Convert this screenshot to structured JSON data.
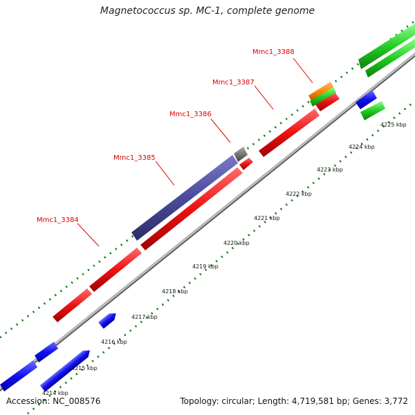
{
  "title": "Magnetococcus sp. MC-1, complete genome",
  "footer": {
    "accession": "Accession: NC_008576",
    "summary": "Topology: circular; Length: 4,719,581 bp; Genes: 3,772"
  },
  "scale_labels": [
    "4214 kbp",
    "4215 kbp",
    "4216 kbp",
    "4217 kbp",
    "4218 kbp",
    "4219 kbp",
    "4220 kbp",
    "4221 kbp",
    "4222 kbp",
    "4223 kbp",
    "4224 kbp",
    "4225 kbp"
  ],
  "gene_labels": [
    "Mmc1_3384",
    "Mmc1_3385",
    "Mmc1_3386",
    "Mmc1_3387",
    "Mmc1_3388"
  ],
  "colors": {
    "cds_forward": "#ee1111",
    "cds_reverse": "#1111ee",
    "rna": "#22cc22",
    "feature_orange": "#ff8800",
    "feature_gray": "#777777",
    "feature_purple": "#4a4a9a",
    "backbone": "#999999",
    "ticks": "#117711",
    "label_red": "#dd0000"
  }
}
